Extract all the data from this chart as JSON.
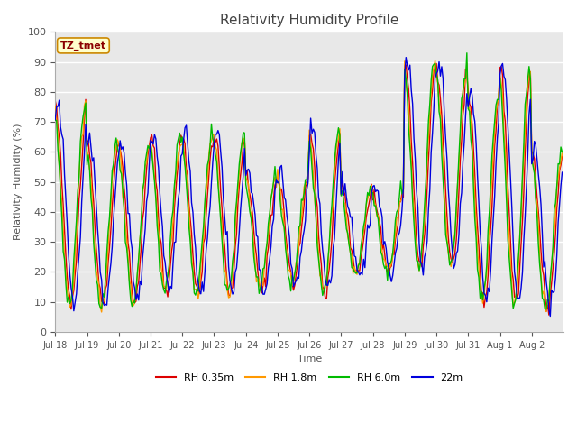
{
  "title": "Relativity Humidity Profile",
  "xlabel": "Time",
  "ylabel": "Relativity Humidity (%)",
  "ylim": [
    0,
    100
  ],
  "yticks": [
    0,
    10,
    20,
    30,
    40,
    50,
    60,
    70,
    80,
    90,
    100
  ],
  "x_labels": [
    "Jul 18",
    "Jul 19",
    "Jul 20",
    "Jul 21",
    "Jul 22",
    "Jul 23",
    "Jul 24",
    "Jul 25",
    "Jul 26",
    "Jul 27",
    "Jul 28",
    "Jul 29",
    "Jul 30",
    "Jul 31",
    "Aug 1",
    "Aug 2"
  ],
  "colors": {
    "RH 0.35m": "#dd0000",
    "RH 1.8m": "#ff9900",
    "RH 6.0m": "#00bb00",
    "22m": "#0000dd"
  },
  "legend_label": "TZ_tmet",
  "facecolor": "#e8e8e8",
  "title_color": "#555555"
}
